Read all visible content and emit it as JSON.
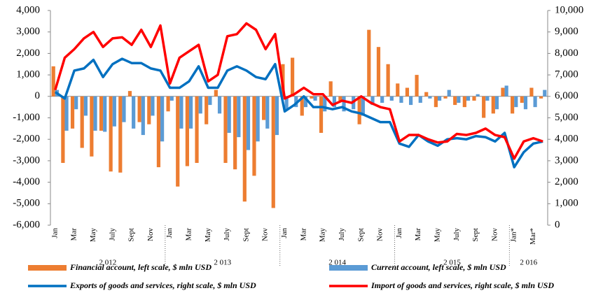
{
  "chart_data": {
    "type": "bar_line",
    "categories": [
      "Jan",
      null,
      "Mar",
      null,
      "May",
      null,
      "July",
      null,
      "Sept",
      null,
      "Nov",
      null,
      "Jan",
      null,
      "Mar",
      null,
      "May",
      null,
      "July",
      null,
      "Sept",
      null,
      "Nov",
      null,
      "Jan",
      null,
      "Mar",
      null,
      "May",
      null,
      "July",
      null,
      "Sept",
      null,
      "Nov",
      null,
      "Jan",
      null,
      "Mar",
      null,
      "May",
      null,
      "July",
      null,
      "Sept",
      null,
      "Nov",
      null,
      "Jan*",
      null,
      "Mar*",
      null
    ],
    "year_labels": [
      "2 012",
      "2 013",
      "2 014",
      "2 015",
      "2 016"
    ],
    "series": [
      {
        "name": "Financial account, left scale, $ mln USD",
        "kind": "bar",
        "axis": "y",
        "color": "#ED7D31",
        "values": [
          1400,
          -3100,
          -1500,
          -2400,
          -2800,
          -1600,
          -3500,
          -3550,
          250,
          -1200,
          -1300,
          -3300,
          -700,
          -4200,
          -3250,
          -3100,
          -1300,
          300,
          -3100,
          -3400,
          -4900,
          -3700,
          -1100,
          -5200,
          1500,
          1800,
          -900,
          -100,
          -1700,
          700,
          -200,
          0,
          -1300,
          3100,
          2300,
          1500,
          600,
          400,
          1000,
          200,
          -500,
          -100,
          -400,
          -500,
          -200,
          -1000,
          -800,
          400,
          -800,
          -300,
          400,
          -100
        ]
      },
      {
        "name": "Current account, left scale, $ mln USD",
        "kind": "bar",
        "axis": "y",
        "color": "#5B9BD5",
        "values": [
          300,
          -1600,
          -600,
          -900,
          -1600,
          -1650,
          -1400,
          -1200,
          -1500,
          -1800,
          -900,
          -2100,
          -200,
          -1500,
          -1500,
          -800,
          -400,
          -800,
          -1700,
          -1900,
          -2500,
          -2100,
          -1500,
          -1800,
          -600,
          -500,
          -500,
          -200,
          -700,
          -500,
          -700,
          -600,
          -900,
          -400,
          -300,
          -200,
          -300,
          -400,
          -300,
          -100,
          -200,
          300,
          -300,
          -200,
          100,
          -200,
          -600,
          500,
          -500,
          -600,
          -500,
          300
        ]
      },
      {
        "name": "Exports of goods and services, right scale, $ mln USD",
        "kind": "line",
        "axis": "y2",
        "color": "#0070C0",
        "values": [
          6200,
          5900,
          7200,
          7300,
          7700,
          6900,
          7500,
          7750,
          7550,
          7550,
          7300,
          7200,
          6400,
          6400,
          6700,
          7400,
          6400,
          6400,
          7200,
          7400,
          7200,
          6900,
          6800,
          7500,
          5300,
          5600,
          6000,
          5500,
          5500,
          5400,
          5500,
          5300,
          5200,
          5000,
          4800,
          4800,
          3800,
          3650,
          4200,
          3900,
          3700,
          4000,
          4050,
          4000,
          4150,
          4100,
          3900,
          4300,
          2700,
          3400,
          3800,
          3900
        ]
      },
      {
        "name": "Import of goods and services, right scale, $ mln USD",
        "kind": "line",
        "axis": "y2",
        "color": "#FF0000",
        "values": [
          6300,
          7800,
          8200,
          8700,
          9000,
          8300,
          8700,
          8750,
          8400,
          9100,
          8300,
          9300,
          6600,
          7800,
          8100,
          8400,
          6700,
          7000,
          8800,
          8900,
          9400,
          9100,
          8200,
          8900,
          5900,
          6100,
          6400,
          6100,
          6100,
          5600,
          5800,
          5700,
          6000,
          5700,
          5500,
          5400,
          3900,
          4200,
          4200,
          4000,
          3850,
          3900,
          4250,
          4200,
          4300,
          4500,
          4200,
          4100,
          3100,
          3900,
          4050,
          3900
        ]
      }
    ],
    "ylim": [
      -6000,
      4000
    ],
    "yticks": [
      {
        "value": -6000,
        "label": "-6,000"
      },
      {
        "value": -5000,
        "label": "-5,000"
      },
      {
        "value": -4000,
        "label": "-4,000"
      },
      {
        "value": -3000,
        "label": "-3,000"
      },
      {
        "value": -2000,
        "label": "-2,000"
      },
      {
        "value": -1000,
        "label": "-1,000"
      },
      0,
      {
        "value": 1000,
        "label": "1,000"
      },
      {
        "value": 2000,
        "label": "2,000"
      },
      {
        "value": 3000,
        "label": "3,000"
      },
      {
        "value": 4000,
        "label": "4,000"
      }
    ],
    "y2lim": [
      0,
      10000
    ],
    "y2ticks": [
      0,
      {
        "value": 1000,
        "label": "1,000"
      },
      {
        "value": 2000,
        "label": "2,000"
      },
      {
        "value": 3000,
        "label": "3,000"
      },
      {
        "value": 4000,
        "label": "4,000"
      },
      {
        "value": 5000,
        "label": "5,000"
      },
      {
        "value": 6000,
        "label": "6,000"
      },
      {
        "value": 7000,
        "label": "7,000"
      },
      {
        "value": 8000,
        "label": "8,000"
      },
      {
        "value": 9000,
        "label": "9,000"
      },
      {
        "value": 10000,
        "label": "10,000"
      }
    ]
  }
}
